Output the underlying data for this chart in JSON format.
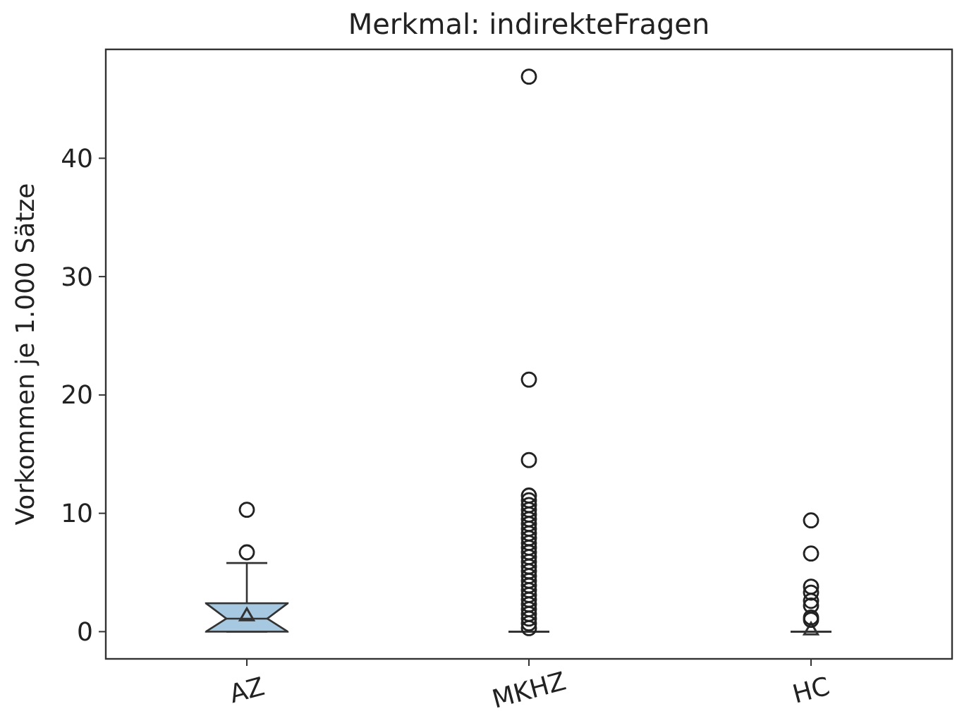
{
  "chart_data": {
    "type": "box",
    "title": "Merkmal: indirekteFragen",
    "ylabel": "Vorkommen je 1.000 Sätze",
    "categories": [
      "AZ",
      "MKHZ",
      "HC"
    ],
    "colors": [
      "#a6c8e0",
      null,
      null
    ],
    "boxes": [
      {
        "low": 0,
        "q1": 0,
        "median": 1.1,
        "q3": 2.4,
        "high": 5.8,
        "mean": 1.3,
        "outliers": [
          6.7,
          10.3
        ]
      },
      {
        "low": 0,
        "q1": 0,
        "median": 0,
        "q3": 0,
        "high": 0,
        "outliers": [
          46.9,
          21.3,
          14.5,
          11.5,
          11.1,
          10.7,
          10.3,
          9.9,
          9.5,
          9.1,
          8.7,
          8.3,
          7.9,
          7.5,
          7.1,
          6.7,
          6.3,
          5.9,
          5.5,
          5.1,
          4.7,
          4.3,
          3.9,
          3.5,
          3.1,
          2.7,
          2.3,
          1.9,
          1.5,
          1.1,
          0.7,
          0.3
        ]
      },
      {
        "low": 0,
        "q1": 0,
        "median": 0,
        "q3": 0,
        "high": 0,
        "mean": 0.1,
        "outliers": [
          9.4,
          6.6,
          3.8,
          3.3,
          2.6,
          2.2,
          1.2,
          1.0
        ]
      }
    ],
    "ylim": [
      -2.3,
      49.2
    ],
    "yticks": [
      0,
      10,
      20,
      30,
      40
    ],
    "marker": "circle",
    "grid": false
  }
}
